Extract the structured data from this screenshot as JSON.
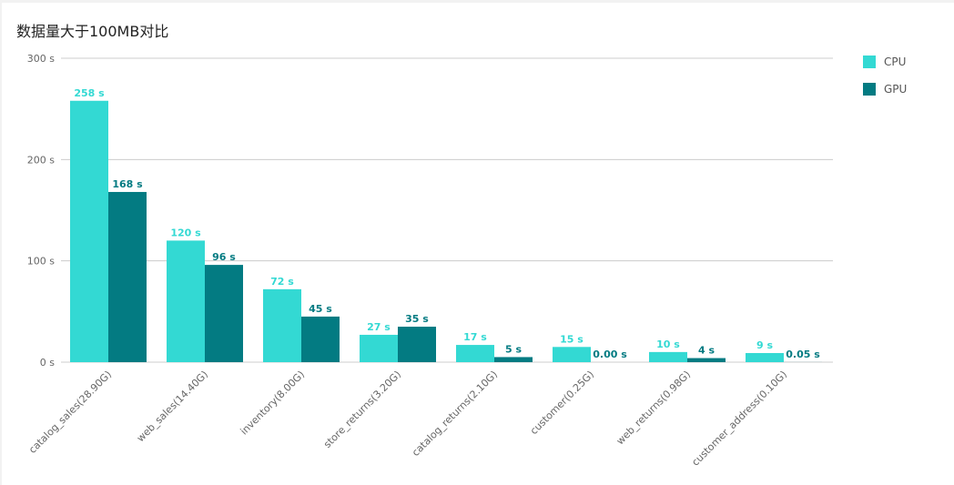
{
  "chart_data": {
    "type": "bar",
    "title": "数据量大于100MB对比",
    "categories": [
      "catalog_sales(28.90G)",
      "web_sales(14.40G)",
      "inventory(8.00G)",
      "store_returns(3.20G)",
      "catalog_returns(2.10G)",
      "customer(0.25G)",
      "web_returns(0.98G)",
      "customer_address(0.10G)"
    ],
    "series": [
      {
        "name": "CPU",
        "color": "#33d9d3",
        "values": [
          258,
          120,
          72,
          27,
          17,
          15,
          10,
          9
        ],
        "labels": [
          "258 s",
          "120 s",
          "72 s",
          "27 s",
          "17 s",
          "15 s",
          "10 s",
          "9 s"
        ]
      },
      {
        "name": "GPU",
        "color": "#037b82",
        "values": [
          168,
          96,
          45,
          35,
          5,
          0,
          4,
          0.05
        ],
        "labels": [
          "168 s",
          "96 s",
          "45 s",
          "35 s",
          "5 s",
          "0.00 s",
          "4 s",
          "0.05 s"
        ]
      }
    ],
    "yticks": [
      "0 s",
      "100 s",
      "200 s",
      "300 s"
    ],
    "ylim": [
      0,
      300
    ],
    "grid": true,
    "legend": "top-right"
  }
}
